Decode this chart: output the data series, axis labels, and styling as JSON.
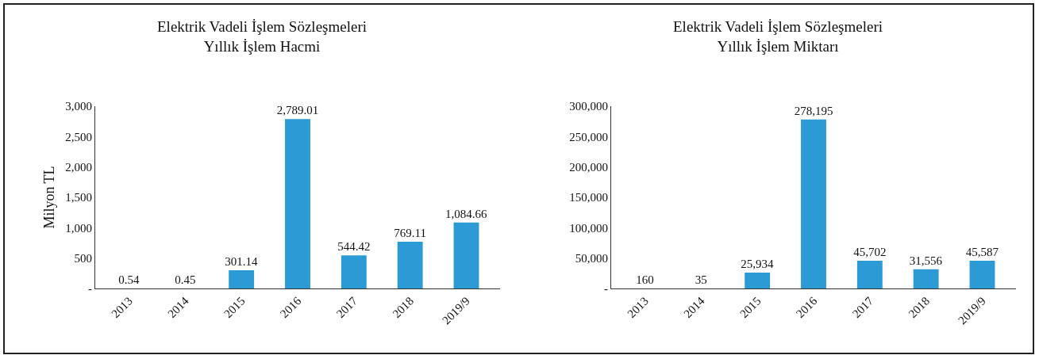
{
  "chart_data": [
    {
      "type": "bar",
      "title": "Elektrik Vadeli İşlem Sözleşmeleri\nYıllık İşlem Hacmi",
      "ylabel": "Milyon TL",
      "categories": [
        "2013",
        "2014",
        "2015",
        "2016",
        "2017",
        "2018",
        "2019/9"
      ],
      "values": [
        0.54,
        0.45,
        301.14,
        2789.01,
        544.42,
        769.11,
        1084.66
      ],
      "value_labels": [
        "0.54",
        "0.45",
        "301.14",
        "2,789.01",
        "544.42",
        "769.11",
        "1,084.66"
      ],
      "color": "#2b9ad5",
      "ylim": [
        0,
        3000
      ],
      "yticks": [
        {
          "value": 0,
          "label": "-"
        },
        {
          "value": 500,
          "label": "500"
        },
        {
          "value": 1000,
          "label": "1,000"
        },
        {
          "value": 1500,
          "label": "1,500"
        },
        {
          "value": 2000,
          "label": "2,000"
        },
        {
          "value": 2500,
          "label": "2,500"
        },
        {
          "value": 3000,
          "label": "3,000"
        }
      ],
      "grid": false
    },
    {
      "type": "bar",
      "title": "Elektrik Vadeli İşlem Sözleşmeleri\nYıllık İşlem Miktarı",
      "categories": [
        "2013",
        "2014",
        "2015",
        "2016",
        "2017",
        "2018",
        "2019/9"
      ],
      "values": [
        160,
        35,
        25934,
        278195,
        45702,
        31556,
        45587
      ],
      "value_labels": [
        "160",
        "35",
        "25,934",
        "278,195",
        "45,702",
        "31,556",
        "45,587"
      ],
      "color": "#2b9ad5",
      "ylim": [
        0,
        300000
      ],
      "yticks": [
        {
          "value": 0,
          "label": "-"
        },
        {
          "value": 50000,
          "label": "50,000"
        },
        {
          "value": 100000,
          "label": "100,000"
        },
        {
          "value": 150000,
          "label": "150,000"
        },
        {
          "value": 200000,
          "label": "200,000"
        },
        {
          "value": 250000,
          "label": "250,000"
        },
        {
          "value": 300000,
          "label": "300,000"
        }
      ],
      "grid": false
    }
  ]
}
